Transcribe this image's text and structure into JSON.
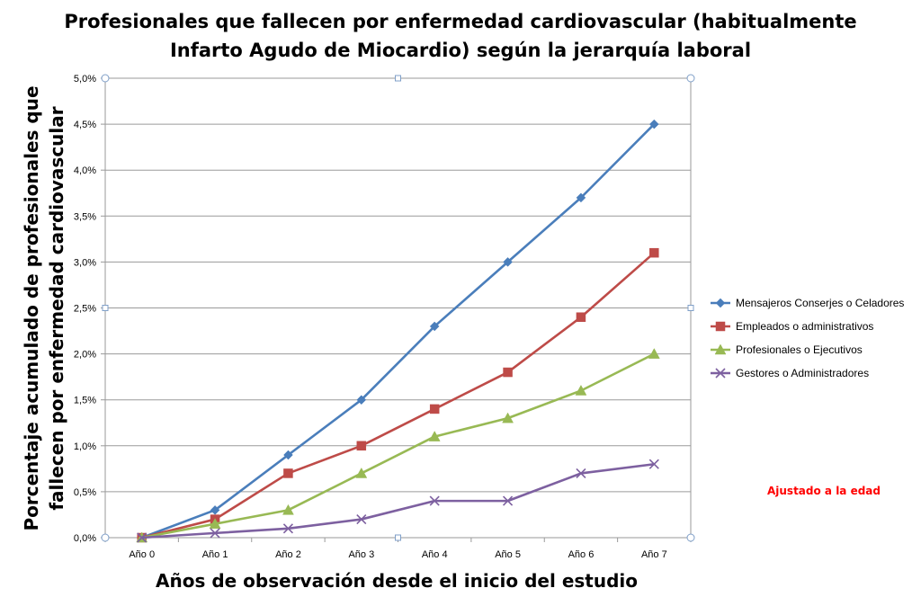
{
  "chart_data": {
    "type": "line",
    "title_lines": [
      "Profesionales que fallecen por enfermedad cardiovascular (habitualmente",
      "Infarto Agudo de Miocardio) según la jerarquía laboral"
    ],
    "xlabel": "Años de observación desde el inicio del estudio",
    "ylabel_lines": [
      "Porcentaje acumulado de profesionales que",
      "fallecen por enfermedad cardiovascular"
    ],
    "categories": [
      "Año 0",
      "Año 1",
      "Año 2",
      "Año 3",
      "Año 4",
      "Año 5",
      "Año 6",
      "Año 7"
    ],
    "ylim": [
      0,
      5.0
    ],
    "yticks": [
      "0,0%",
      "0,5%",
      "1,0%",
      "1,5%",
      "2,0%",
      "2,5%",
      "3,0%",
      "3,5%",
      "4,0%",
      "4,5%",
      "5,0%"
    ],
    "grid": true,
    "legend_position": "right",
    "series": [
      {
        "name": "Mensajeros Conserjes o Celadores",
        "color": "#4a7ebb",
        "marker": "diamond",
        "values": [
          0,
          0.3,
          0.9,
          1.5,
          2.3,
          3.0,
          3.7,
          4.5
        ]
      },
      {
        "name": "Empleados o administrativos",
        "color": "#be4b48",
        "marker": "square",
        "values": [
          0,
          0.2,
          0.7,
          1.0,
          1.4,
          1.8,
          2.4,
          3.1
        ]
      },
      {
        "name": "Profesionales o Ejecutivos",
        "color": "#98b954",
        "marker": "triangle",
        "values": [
          0,
          0.15,
          0.3,
          0.7,
          1.1,
          1.3,
          1.6,
          2.0
        ]
      },
      {
        "name": "Gestores o Administradores",
        "color": "#7d60a0",
        "marker": "x",
        "values": [
          0,
          0.05,
          0.1,
          0.2,
          0.4,
          0.4,
          0.7,
          0.8
        ]
      }
    ],
    "annotation": {
      "text": "Ajustado a la edad",
      "color": "#ff0000"
    }
  }
}
